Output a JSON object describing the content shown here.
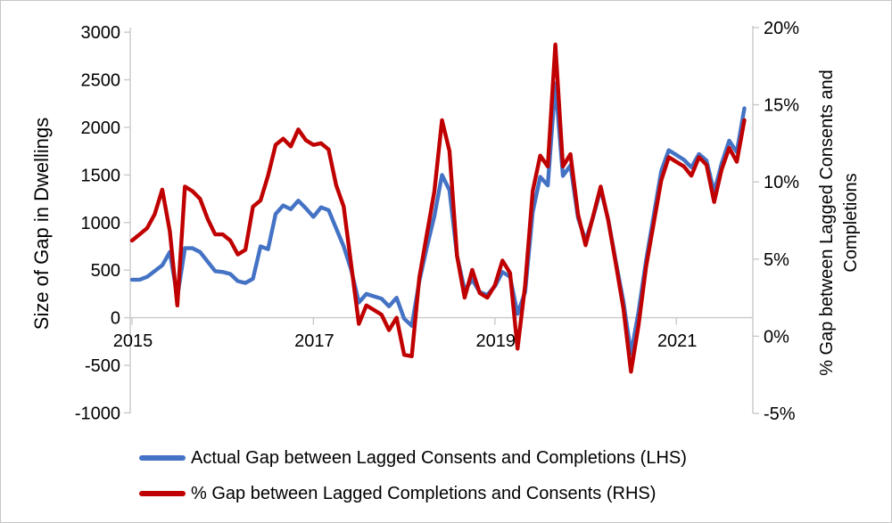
{
  "chart_data": {
    "type": "line",
    "title": "",
    "grid": "none",
    "legend_position": "bottom-left",
    "background_color": "#ffffff",
    "axis_line_color": "#c9c9c9",
    "x_months": [
      "2015-01",
      "2015-02",
      "2015-03",
      "2015-04",
      "2015-05",
      "2015-06",
      "2015-07",
      "2015-08",
      "2015-09",
      "2015-10",
      "2015-11",
      "2015-12",
      "2016-01",
      "2016-02",
      "2016-03",
      "2016-04",
      "2016-05",
      "2016-06",
      "2016-07",
      "2016-08",
      "2016-09",
      "2016-10",
      "2016-11",
      "2016-12",
      "2017-01",
      "2017-02",
      "2017-03",
      "2017-04",
      "2017-05",
      "2017-06",
      "2017-07",
      "2017-08",
      "2017-09",
      "2017-10",
      "2017-11",
      "2017-12",
      "2018-01",
      "2018-02",
      "2018-03",
      "2018-04",
      "2018-05",
      "2018-06",
      "2018-07",
      "2018-08",
      "2018-09",
      "2018-10",
      "2018-11",
      "2018-12",
      "2019-01",
      "2019-02",
      "2019-03",
      "2019-04",
      "2019-05",
      "2019-06",
      "2019-07",
      "2019-08",
      "2019-09",
      "2019-10",
      "2019-11",
      "2019-12",
      "2020-01",
      "2020-02",
      "2020-03",
      "2020-04",
      "2020-05",
      "2020-06",
      "2020-07",
      "2020-08",
      "2020-09",
      "2020-10",
      "2020-11",
      "2020-12",
      "2021-01",
      "2021-02",
      "2021-03",
      "2021-04",
      "2021-05",
      "2021-06",
      "2021-07",
      "2021-08",
      "2021-09",
      "2021-10"
    ],
    "x_axis": {
      "tick_labels": [
        "2015",
        "2017",
        "2019",
        "2021"
      ],
      "tick_month_index": [
        0,
        24,
        48,
        72
      ]
    },
    "left_axis": {
      "title": "Size of Gap in Dwellings",
      "tick_labels": [
        "3000",
        "2500",
        "2000",
        "1500",
        "1000",
        "500",
        "0",
        "-500",
        "-1000"
      ],
      "tick_values": [
        3000,
        2500,
        2000,
        1500,
        1000,
        500,
        0,
        -500,
        -1000
      ],
      "range": [
        -1000,
        3000
      ]
    },
    "right_axis": {
      "title_line1": "% Gap between Lagged Consents and",
      "title_line2": "Completions",
      "tick_labels": [
        "20%",
        "15%",
        "10%",
        "5%",
        "0%",
        "-5%"
      ],
      "tick_values": [
        20,
        15,
        10,
        5,
        0,
        -5
      ],
      "range": [
        -5,
        20
      ]
    },
    "series": [
      {
        "name": "Actual Gap between Lagged Consents and Completions (LHS)",
        "axis": "left",
        "color": "#4472C4",
        "values": [
          400,
          400,
          430,
          490,
          550,
          690,
          220,
          730,
          730,
          690,
          590,
          490,
          480,
          460,
          385,
          365,
          410,
          750,
          720,
          1090,
          1180,
          1140,
          1230,
          1150,
          1060,
          1160,
          1130,
          940,
          750,
          500,
          160,
          250,
          225,
          200,
          120,
          210,
          -10,
          -85,
          385,
          740,
          1070,
          1500,
          1340,
          650,
          290,
          400,
          270,
          240,
          330,
          480,
          430,
          40,
          270,
          1110,
          1480,
          1390,
          2460,
          1490,
          1600,
          1050,
          810,
          1060,
          1350,
          1030,
          590,
          170,
          -380,
          60,
          600,
          1070,
          1540,
          1760,
          1710,
          1660,
          1580,
          1720,
          1650,
          1320,
          1620,
          1860,
          1740,
          2200
        ]
      },
      {
        "name": "% Gap between Lagged Completions and Consents (RHS)",
        "axis": "right",
        "color": "#C00000",
        "values": [
          6.2,
          6.6,
          7.0,
          7.9,
          9.5,
          6.8,
          2.0,
          9.7,
          9.4,
          8.9,
          7.6,
          6.6,
          6.6,
          6.2,
          5.3,
          5.6,
          8.4,
          8.8,
          10.4,
          12.4,
          12.8,
          12.3,
          13.4,
          12.7,
          12.4,
          12.5,
          12.1,
          9.8,
          8.4,
          4.6,
          0.8,
          2.0,
          1.7,
          1.4,
          0.4,
          1.2,
          -1.2,
          -1.3,
          3.8,
          6.6,
          9.4,
          14.0,
          12.0,
          5.2,
          2.5,
          4.3,
          2.8,
          2.5,
          3.3,
          4.9,
          4.1,
          -0.8,
          3.3,
          9.4,
          11.7,
          11.0,
          18.9,
          11.0,
          11.8,
          7.9,
          5.9,
          7.8,
          9.7,
          7.5,
          4.7,
          1.8,
          -2.3,
          0.7,
          4.5,
          7.3,
          10.1,
          11.6,
          11.3,
          11.0,
          10.4,
          11.6,
          11.1,
          8.7,
          10.8,
          12.2,
          11.3,
          14.0
        ]
      }
    ]
  }
}
